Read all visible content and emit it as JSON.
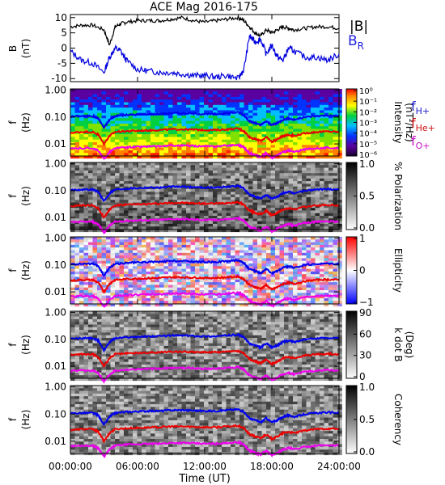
{
  "title": "ACE Mag 2016-175",
  "xaxis": {
    "label": "Time (UT)",
    "range_hours": [
      0,
      24
    ],
    "ticks": [
      "00:00:00",
      "06:00:00",
      "12:00:00",
      "18:00:00",
      "24:00:00"
    ]
  },
  "chart_data": [
    {
      "type": "line",
      "panel": "B",
      "ylabel": [
        "B",
        "(nT)"
      ],
      "ylim": [
        -11,
        11
      ],
      "yticks": [
        "10",
        "5",
        "0",
        "-5",
        "-10"
      ],
      "x_hours": [
        0,
        1,
        2,
        3,
        3.5,
        4,
        4.5,
        5,
        6,
        7,
        8,
        9,
        10,
        11,
        12,
        13,
        14,
        15,
        15.5,
        16,
        16.5,
        17,
        17.5,
        18,
        18.5,
        19,
        19.5,
        20,
        21,
        22,
        23,
        24
      ],
      "series": [
        {
          "name": "|B|",
          "color": "#000000",
          "values": [
            7,
            7.5,
            7.5,
            6,
            1,
            7,
            8,
            8.5,
            9,
            9,
            9,
            9.5,
            10,
            9,
            8.5,
            9,
            9.5,
            10,
            9,
            7,
            5,
            4,
            6,
            5,
            6,
            7,
            6.5,
            6,
            6.5,
            7,
            7,
            6.5
          ]
        },
        {
          "name": "B_R",
          "color": "#0000dd",
          "values": [
            -1,
            -4,
            -5,
            -8,
            -3,
            0,
            -1,
            -4,
            -7,
            -7.5,
            -8,
            -8,
            -8.5,
            -9,
            -9,
            -9.5,
            -9,
            -10,
            -7,
            4,
            2,
            3,
            -2,
            1,
            -3,
            -4,
            0,
            -1,
            -3,
            -3,
            -4,
            -2
          ]
        }
      ]
    },
    {
      "type": "heatmap",
      "panel": "Intensity",
      "colorbar": {
        "title": "Intensity",
        "unit": "(nT²/Hz)",
        "ticks": [
          "10⁰",
          "10⁻¹",
          "10⁻²",
          "10⁻³",
          "10⁻⁴",
          "10⁻⁵",
          "10⁻⁶"
        ],
        "range_log10": [
          -6,
          0
        ]
      }
    },
    {
      "type": "heatmap",
      "panel": "Polarization",
      "colorbar": {
        "title": "% Polarization",
        "unit": "",
        "ticks": [
          "1.0",
          "0.5",
          "0.0"
        ],
        "range": [
          0,
          1
        ]
      }
    },
    {
      "type": "heatmap",
      "panel": "Ellipticity",
      "colorbar": {
        "title": "Ellipticity",
        "unit": "",
        "ticks": [
          "1",
          "0",
          "−1"
        ],
        "range": [
          -1,
          1
        ]
      }
    },
    {
      "type": "heatmap",
      "panel": "kdotB",
      "colorbar": {
        "title": "k dot B",
        "unit": "(Deg)",
        "ticks": [
          "90",
          "60",
          "30",
          "0"
        ],
        "range": [
          0,
          90
        ]
      }
    },
    {
      "type": "heatmap",
      "panel": "Coherency",
      "colorbar": {
        "title": "Coherency",
        "unit": "",
        "ticks": [
          "1.0",
          "0.5",
          "0.0"
        ],
        "range": [
          0,
          1
        ]
      }
    }
  ],
  "spectrogram_axes": {
    "ylabel": [
      "f",
      "(Hz)"
    ],
    "yticks": [
      "1.00",
      "0.10",
      "0.01"
    ],
    "ylim_log10": [
      -2.45,
      0.05
    ]
  },
  "gyrofrequencies": {
    "x_hours": [
      0,
      1,
      2,
      2.5,
      3,
      3.5,
      4,
      5,
      6,
      7,
      8,
      9,
      10,
      11,
      12,
      13,
      14,
      15,
      15.5,
      16,
      16.5,
      17,
      17.5,
      18,
      18.5,
      19,
      19.5,
      20,
      21,
      22,
      23,
      24
    ],
    "series": [
      {
        "name": "f_H+",
        "color": "#0000ee",
        "values_hz": [
          0.105,
          0.11,
          0.11,
          0.09,
          0.04,
          0.08,
          0.11,
          0.12,
          0.125,
          0.13,
          0.13,
          0.14,
          0.14,
          0.135,
          0.13,
          0.13,
          0.14,
          0.15,
          0.12,
          0.07,
          0.06,
          0.05,
          0.07,
          0.05,
          0.06,
          0.08,
          0.09,
          0.08,
          0.1,
          0.11,
          0.115,
          0.11
        ]
      },
      {
        "name": "f_He+",
        "color": "#ee0000",
        "values_hz": [
          0.026,
          0.028,
          0.028,
          0.022,
          0.01,
          0.02,
          0.028,
          0.03,
          0.031,
          0.032,
          0.033,
          0.035,
          0.035,
          0.034,
          0.033,
          0.033,
          0.035,
          0.037,
          0.03,
          0.018,
          0.015,
          0.013,
          0.018,
          0.012,
          0.015,
          0.02,
          0.022,
          0.02,
          0.025,
          0.028,
          0.029,
          0.028
        ]
      },
      {
        "name": "f_O+",
        "color": "#ee00ee",
        "values_hz": [
          0.0066,
          0.0069,
          0.0069,
          0.0056,
          0.0027,
          0.005,
          0.0069,
          0.0075,
          0.0078,
          0.008,
          0.0081,
          0.0087,
          0.0087,
          0.0084,
          0.0081,
          0.0081,
          0.0087,
          0.0092,
          0.0075,
          0.0045,
          0.0038,
          0.0033,
          0.0045,
          0.003,
          0.0038,
          0.005,
          0.0056,
          0.005,
          0.0063,
          0.0069,
          0.0072,
          0.0069
        ]
      }
    ]
  },
  "legend": {
    "b_abs": "|B|",
    "b_r_main": "B",
    "b_r_sub": "R",
    "fh_main": "f",
    "fh_sub": "H+",
    "fhe_main": "f",
    "fhe_sub": "He+",
    "fo_main": "f",
    "fo_sub": "O+"
  }
}
